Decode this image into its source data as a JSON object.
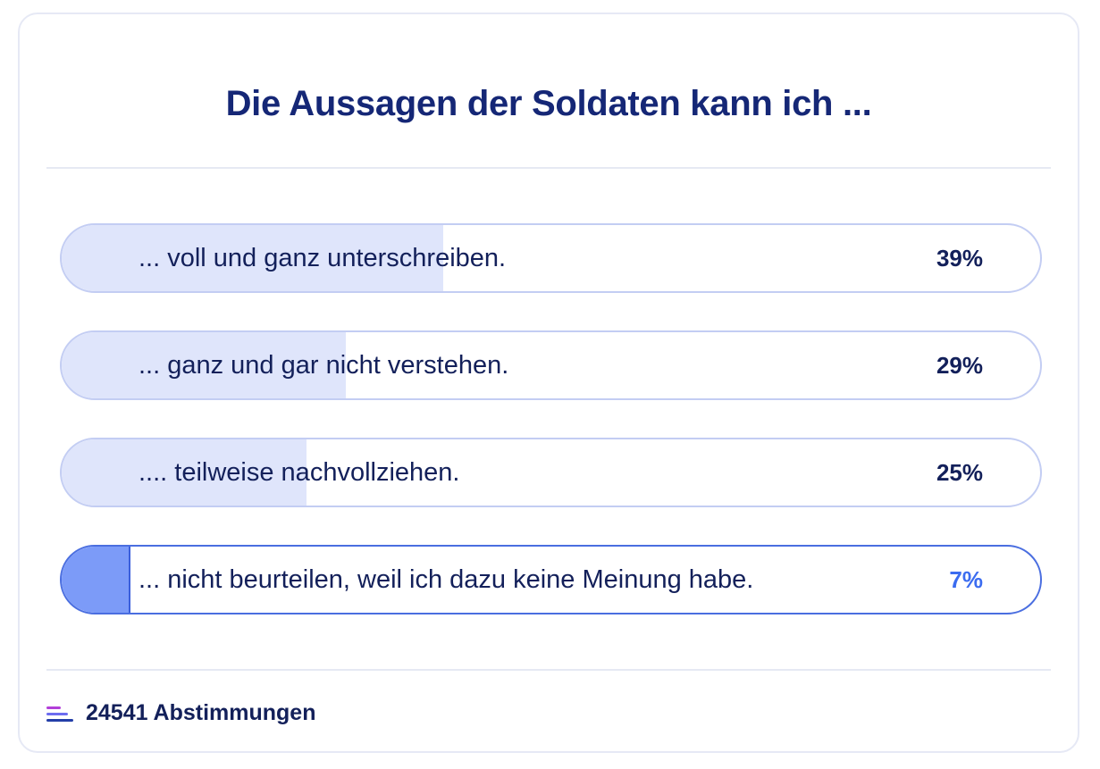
{
  "poll": {
    "title": "Die Aussagen der Soldaten kann ich ...",
    "options": [
      {
        "label": "... voll und ganz unterschreiben.",
        "percent_text": "39%",
        "percent": 39,
        "selected": false
      },
      {
        "label": "... ganz und gar nicht verstehen.",
        "percent_text": "29%",
        "percent": 29,
        "selected": false
      },
      {
        "label": ".... teilweise nachvollziehen.",
        "percent_text": "25%",
        "percent": 25,
        "selected": false
      },
      {
        "label": "... nicht beurteilen, weil ich dazu keine Meinung habe.",
        "percent_text": "7%",
        "percent": 7,
        "selected": true
      }
    ],
    "votes_text": "24541 Abstimmungen"
  },
  "colors": {
    "title": "#152776",
    "text": "#13205a",
    "fill": "#dfe5fb",
    "selected_fill": "#7c9bf8",
    "selected_accent": "#3b6cf0"
  },
  "icons": {
    "votes": "bar-lines-icon"
  }
}
